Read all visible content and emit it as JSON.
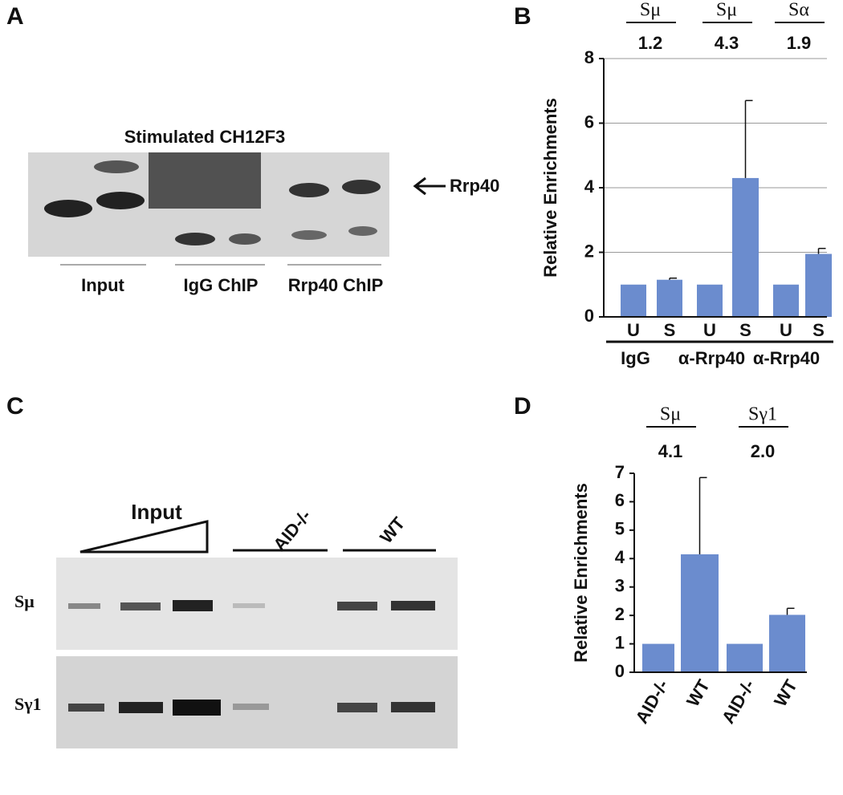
{
  "panel_labels": [
    "A",
    "B",
    "C",
    "D"
  ],
  "gel_a": {
    "title": "Stimulated CH12F3",
    "arrow_label": "Rrp40",
    "lanes": [
      "Input",
      "IgG ChIP",
      "Rrp40 ChIP"
    ]
  },
  "gel_c": {
    "ramp_label": "Input",
    "groups": [
      "AID-/-",
      "WT"
    ],
    "rows": [
      "Sμ",
      "Sγ1"
    ]
  },
  "chart_data": [
    {
      "type": "bar",
      "ylabel": "Relative Enrichments",
      "categories": [
        "U",
        "S",
        "U",
        "S",
        "U",
        "S"
      ],
      "values": [
        1,
        1.15,
        1,
        4.3,
        1,
        1.95
      ],
      "errors": [
        null,
        0.05,
        null,
        2.4,
        null,
        0.17
      ],
      "groups": [
        "IgG",
        "α-Rrp40",
        "α-Rrp40"
      ],
      "annotations": [
        {
          "region": "Sμ",
          "ratio": "1.2"
        },
        {
          "region": "Sμ",
          "ratio": "4.3"
        },
        {
          "region": "Sα",
          "ratio": "1.9"
        }
      ],
      "color": "#6b8cce",
      "ylim": [
        0,
        8
      ],
      "yticks": [
        0,
        2,
        4,
        6,
        8
      ],
      "grid": true
    },
    {
      "type": "bar",
      "ylabel": "Relative Enrichments",
      "categories": [
        "AID-/-",
        "WT",
        "AID-/-",
        "WT"
      ],
      "values": [
        1,
        4.15,
        1,
        2.02
      ],
      "errors": [
        null,
        2.7,
        null,
        0.23
      ],
      "annotations": [
        {
          "region": "Sμ",
          "ratio": "4.1"
        },
        {
          "region": "Sγ1",
          "ratio": "2.0"
        }
      ],
      "color": "#6b8cce",
      "ylim": [
        0,
        7
      ],
      "yticks": [
        0,
        1,
        2,
        3,
        4,
        5,
        6,
        7
      ],
      "grid": false
    }
  ]
}
